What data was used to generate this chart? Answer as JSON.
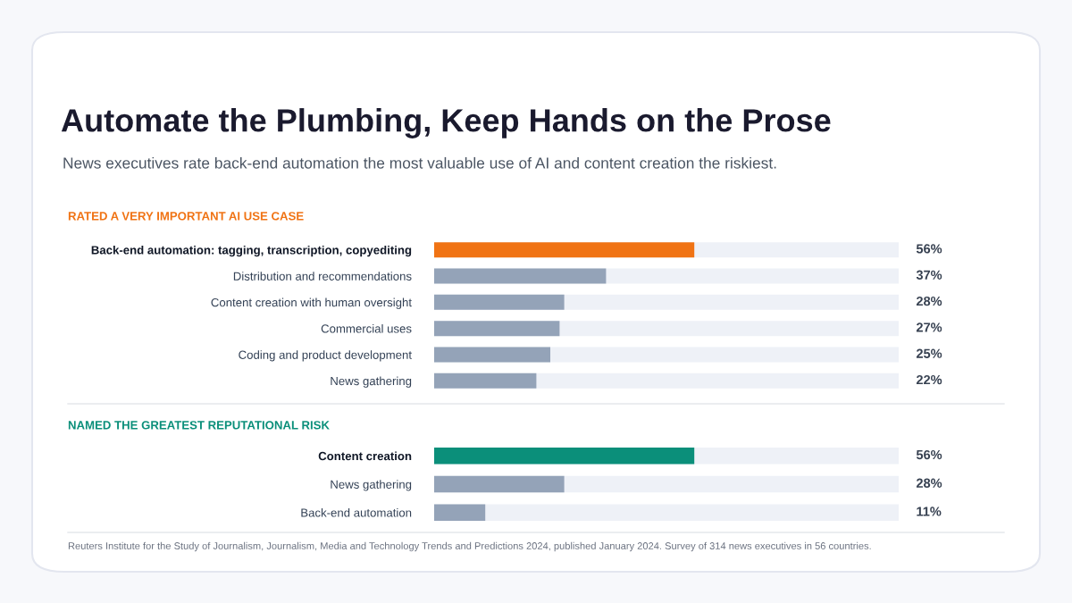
{
  "chart_data": [
    {
      "type": "bar",
      "orientation": "horizontal",
      "title": "Automate the Plumbing, Keep Hands on the Prose",
      "subtitle": "News executives rate back-end automation the most valuable use of AI and content creation the riskiest.",
      "annotations": [
        "RATED A VERY IMPORTANT AI USE CASE"
      ],
      "categories": [
        "Back-end automation: tagging, transcription, copyediting",
        "Distribution and recommendations",
        "Content creation with human oversight",
        "Commercial uses",
        "Coding and product development",
        "News gathering"
      ],
      "values": [
        56,
        37,
        28,
        27,
        25,
        22
      ],
      "value_labels": [
        "56%",
        "37%",
        "28%",
        "27%",
        "25%",
        "22%"
      ],
      "colors": [
        "#f07314",
        "#94a3b8",
        "#94a3b8",
        "#94a3b8",
        "#94a3b8",
        "#94a3b8"
      ],
      "xlim": [
        0,
        100
      ],
      "tick_labels": "y",
      "grid": false,
      "legend": false
    },
    {
      "type": "bar",
      "orientation": "horizontal",
      "title": "NAMED THE GREATEST REPUTATIONAL RISK",
      "annotations": [
        "Reuters Institute for the Study of Journalism, Journalism, Media and Technology Trends and Predictions 2024, published January 2024. Survey of 314 news executives in 56 countries."
      ],
      "categories": [
        "Content creation",
        "News gathering",
        "Back-end automation"
      ],
      "values": [
        56,
        28,
        11
      ],
      "value_labels": [
        "56%",
        "28%",
        "11%"
      ],
      "colors": [
        "#0b8f7a",
        "#94a3b8",
        "#94a3b8"
      ],
      "xlim": [
        0,
        100
      ],
      "tick_labels": "y",
      "grid": false,
      "legend": false
    }
  ]
}
